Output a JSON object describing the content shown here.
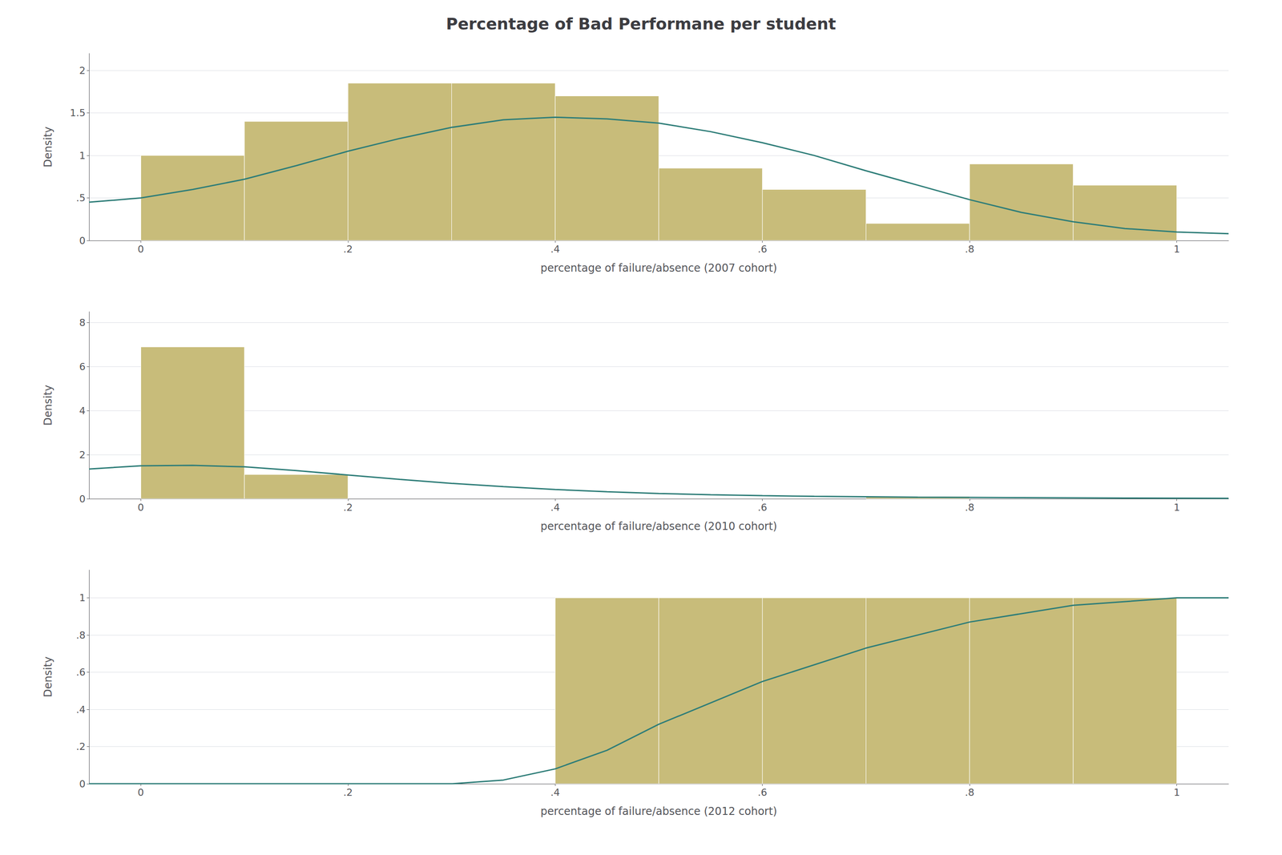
{
  "chart_data": [
    {
      "type": "histogram",
      "title": "Percentage of Bad Performane per student",
      "xlabel": "percentage of failure/absence (2007 cohort)",
      "ylabel": "Density",
      "xlim": [
        -0.05,
        1.05
      ],
      "ylim": [
        0,
        2.2
      ],
      "xticks": [
        0,
        {
          "value": 0.2,
          "label": ".2"
        },
        {
          "value": 0.4,
          "label": ".4"
        },
        {
          "value": 0.6,
          "label": ".6"
        },
        {
          "value": 0.8,
          "label": ".8"
        },
        1
      ],
      "yticks": [
        0,
        {
          "value": 0.5,
          "label": ".5"
        },
        1,
        1.5,
        2
      ],
      "grid": true,
      "series": [
        {
          "type": "bar",
          "color": "#c8bc7a",
          "bins": [
            0.0,
            0.1,
            0.2,
            0.3,
            0.4,
            0.5,
            0.6,
            0.7,
            0.8,
            0.9,
            1.0
          ],
          "values": [
            1.0,
            1.4,
            1.85,
            1.85,
            1.7,
            0.85,
            0.6,
            0.2,
            0.9,
            0.65
          ]
        },
        {
          "type": "line",
          "color": "#2e7d78",
          "x": [
            -0.05,
            0.0,
            0.05,
            0.1,
            0.15,
            0.2,
            0.25,
            0.3,
            0.35,
            0.4,
            0.45,
            0.5,
            0.55,
            0.6,
            0.65,
            0.7,
            0.75,
            0.8,
            0.85,
            0.9,
            0.95,
            1.0,
            1.05
          ],
          "values": [
            0.45,
            0.5,
            0.6,
            0.72,
            0.88,
            1.05,
            1.2,
            1.33,
            1.42,
            1.45,
            1.43,
            1.38,
            1.28,
            1.15,
            1.0,
            0.82,
            0.65,
            0.48,
            0.33,
            0.22,
            0.14,
            0.1,
            0.08
          ]
        }
      ]
    },
    {
      "type": "histogram",
      "xlabel": "percentage of failure/absence (2010 cohort)",
      "ylabel": "Density",
      "xlim": [
        -0.05,
        1.05
      ],
      "ylim": [
        0,
        8.5
      ],
      "xticks": [
        0,
        {
          "value": 0.2,
          "label": ".2"
        },
        {
          "value": 0.4,
          "label": ".4"
        },
        {
          "value": 0.6,
          "label": ".6"
        },
        {
          "value": 0.8,
          "label": ".8"
        },
        1
      ],
      "yticks": [
        0,
        2,
        4,
        6,
        8
      ],
      "grid": true,
      "series": [
        {
          "type": "bar",
          "color": "#c8bc7a",
          "bins": [
            0.0,
            0.1,
            0.2,
            0.3,
            0.4,
            0.5,
            0.6,
            0.7,
            0.8,
            0.9,
            1.0
          ],
          "values": [
            6.9,
            1.1,
            0.0,
            0.0,
            0.0,
            0.0,
            0.0,
            0.1,
            0.0,
            0.0
          ]
        },
        {
          "type": "line",
          "color": "#2e7d78",
          "x": [
            -0.05,
            0.0,
            0.05,
            0.1,
            0.15,
            0.2,
            0.25,
            0.3,
            0.35,
            0.4,
            0.45,
            0.5,
            0.55,
            0.6,
            0.65,
            0.7,
            0.75,
            0.8,
            0.85,
            0.9,
            0.95,
            1.0,
            1.05
          ],
          "values": [
            1.35,
            1.5,
            1.52,
            1.45,
            1.28,
            1.08,
            0.88,
            0.7,
            0.55,
            0.42,
            0.32,
            0.24,
            0.18,
            0.14,
            0.11,
            0.09,
            0.07,
            0.06,
            0.05,
            0.04,
            0.03,
            0.025,
            0.02
          ]
        }
      ]
    },
    {
      "type": "histogram",
      "xlabel": "percentage of failure/absence (2012 cohort)",
      "ylabel": "Density",
      "xlim": [
        -0.05,
        1.05
      ],
      "ylim": [
        0,
        1.15
      ],
      "xticks": [
        0,
        {
          "value": 0.2,
          "label": ".2"
        },
        {
          "value": 0.4,
          "label": ".4"
        },
        {
          "value": 0.6,
          "label": ".6"
        },
        {
          "value": 0.8,
          "label": ".8"
        },
        1
      ],
      "yticks": [
        0,
        {
          "value": 0.2,
          "label": ".2"
        },
        {
          "value": 0.4,
          "label": ".4"
        },
        {
          "value": 0.6,
          "label": ".6"
        },
        {
          "value": 0.8,
          "label": ".8"
        },
        1
      ],
      "grid": true,
      "series": [
        {
          "type": "bar",
          "color": "#c8bc7a",
          "bins": [
            0.0,
            0.1,
            0.2,
            0.3,
            0.4,
            0.5,
            0.6,
            0.7,
            0.8,
            0.9,
            1.0
          ],
          "values": [
            0.0,
            0.0,
            0.0,
            0.0,
            1.0,
            1.0,
            1.0,
            1.0,
            1.0,
            1.0
          ]
        },
        {
          "type": "line",
          "color": "#2e7d78",
          "x": [
            -0.05,
            0.0,
            0.05,
            0.1,
            0.15,
            0.2,
            0.25,
            0.3,
            0.35,
            0.4,
            0.45,
            0.5,
            0.6,
            0.7,
            0.8,
            0.9,
            1.0,
            1.05
          ],
          "values": [
            0.0,
            0.0,
            0.0,
            0.0,
            0.0,
            0.0,
            0.0,
            0.0,
            0.02,
            0.08,
            0.18,
            0.32,
            0.55,
            0.73,
            0.87,
            0.96,
            1.0,
            1.0
          ]
        }
      ]
    }
  ]
}
